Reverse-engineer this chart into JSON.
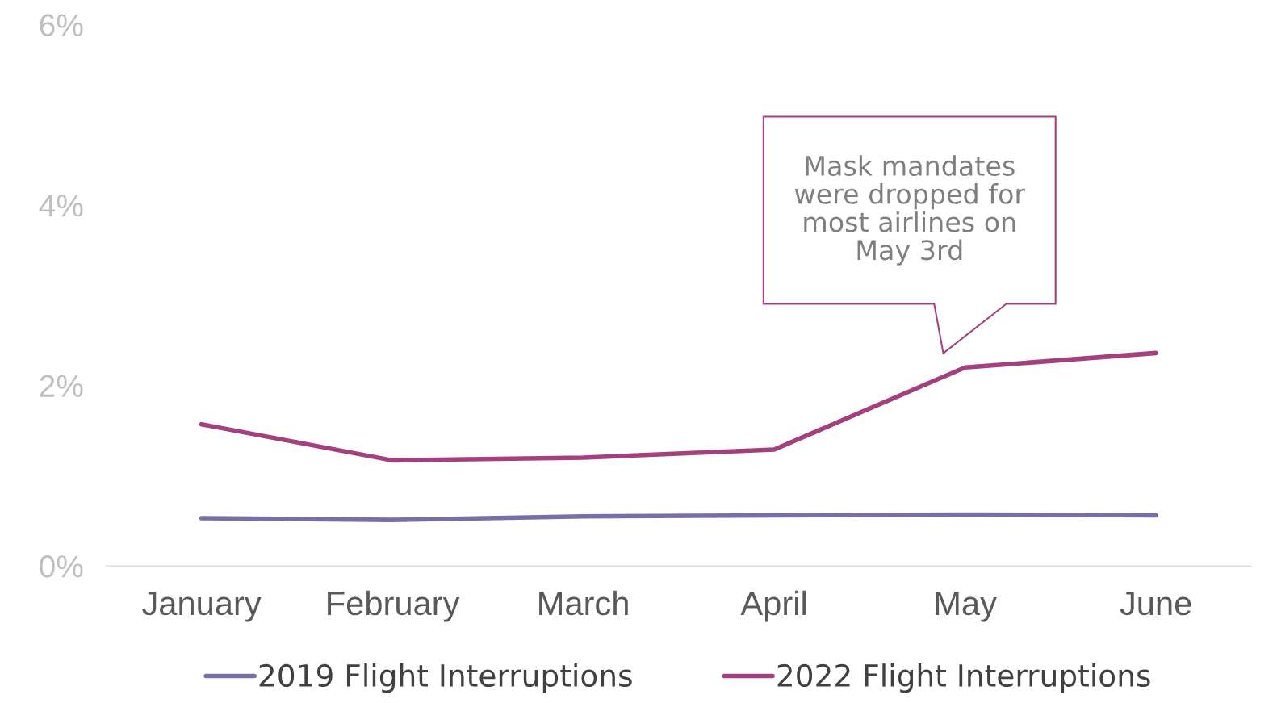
{
  "chart_data": {
    "type": "line",
    "categories": [
      "January",
      "February",
      "March",
      "April",
      "May",
      "June"
    ],
    "series": [
      {
        "name": "2019 Flight Interruptions",
        "color": "#7670a8",
        "values": [
          0.53,
          0.51,
          0.55,
          0.56,
          0.57,
          0.56
        ]
      },
      {
        "name": "2022 Flight Interruptions",
        "color": "#a3417c",
        "values": [
          1.57,
          1.17,
          1.2,
          1.29,
          2.2,
          2.36
        ]
      }
    ],
    "ylim": [
      0,
      6
    ],
    "yticks": [
      {
        "value": 0,
        "label": "0%"
      },
      {
        "value": 2,
        "label": "2%"
      },
      {
        "value": 4,
        "label": "4%"
      },
      {
        "value": 6,
        "label": "6%"
      }
    ],
    "annotations": [
      "Mask mandates\nwere dropped for\nmost airlines on\nMay 3rd"
    ],
    "grid": false,
    "legend": "bottom",
    "line_style": "solid",
    "marker": "none"
  }
}
